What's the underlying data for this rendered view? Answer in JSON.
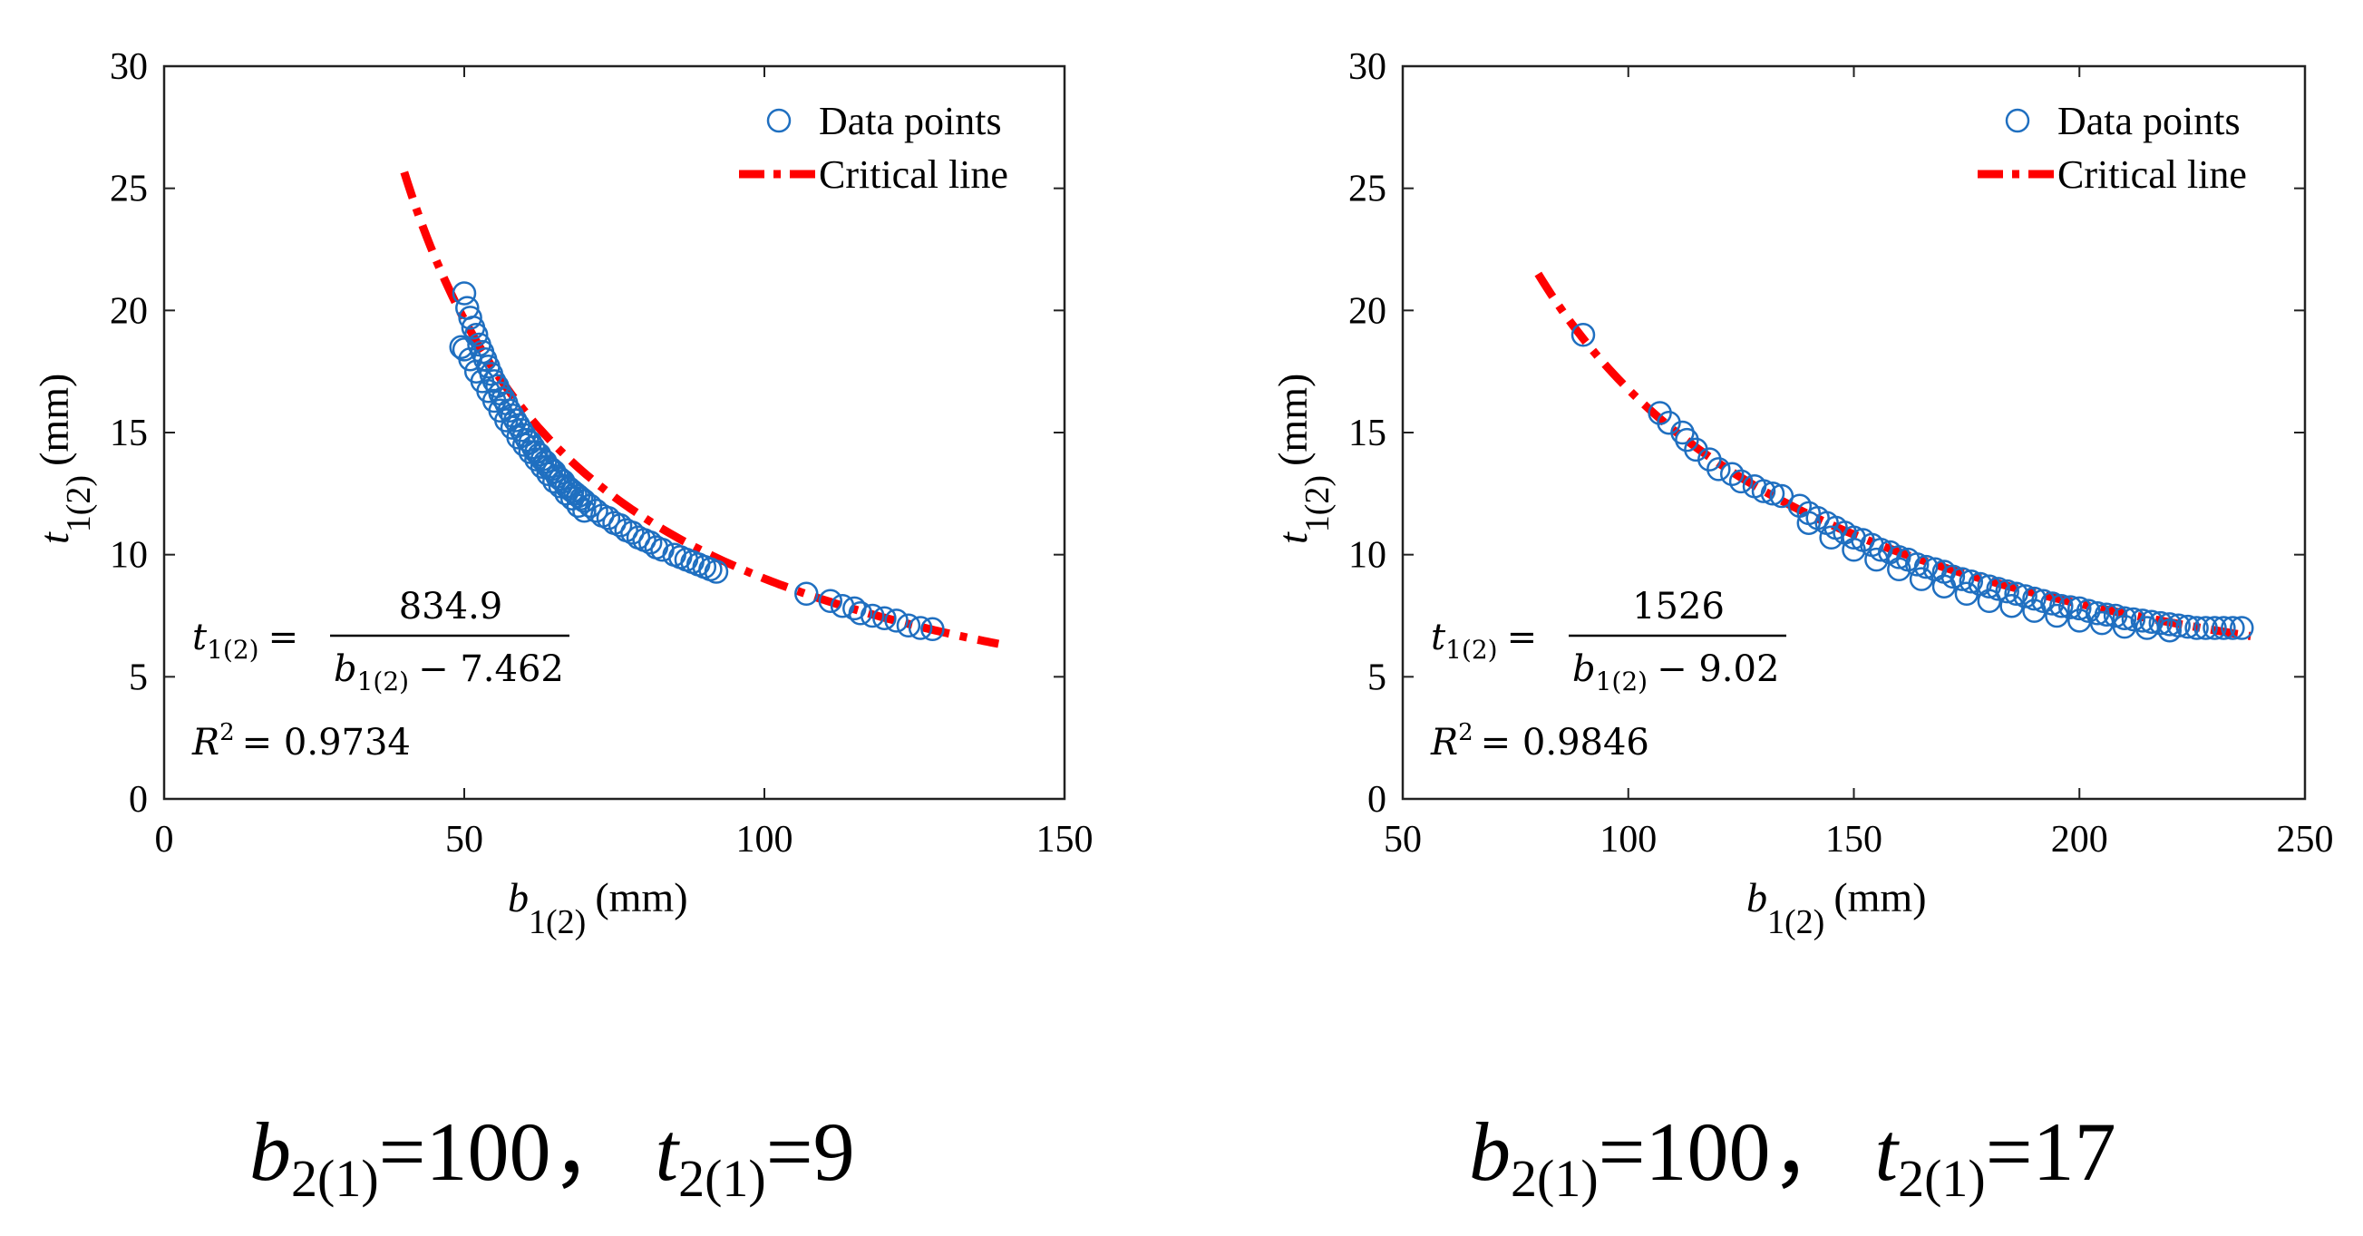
{
  "colors": {
    "points": "#1f6fc0",
    "critical": "#ff0000",
    "axis": "#222222"
  },
  "chart_data": [
    {
      "type": "scatter",
      "legend": {
        "placement": "top-right",
        "entries": [
          "Data points",
          "Critical line"
        ]
      },
      "xlabel": {
        "main": "b",
        "sub": "1(2)",
        "unit": "(mm)"
      },
      "ylabel": {
        "main": "t",
        "sub": "1(2)",
        "unit": "(mm)"
      },
      "xlim": [
        0,
        150
      ],
      "ylim": [
        0,
        30
      ],
      "xticks": [
        0,
        50,
        100,
        150
      ],
      "yticks": [
        0,
        5,
        10,
        15,
        20,
        25,
        30
      ],
      "xtick_labels": [
        "0",
        "50",
        "100",
        "150"
      ],
      "ytick_labels": [
        "0",
        "5",
        "10",
        "15",
        "20",
        "25",
        "30"
      ],
      "fit": {
        "a": 834.9,
        "c": 7.462,
        "x_range": [
          40,
          139
        ]
      },
      "equation": {
        "lhs": "t",
        "lhs_sub": "1(2)",
        "num": "834.9",
        "den_var": "b",
        "den_sub": "1(2)",
        "den_rest": "− 7.462"
      },
      "r2_text": {
        "label": "R",
        "sup": "2",
        "value": "= 0.9734"
      },
      "series": [
        {
          "name": "Data points",
          "x": [
            49.5,
            50,
            50.5,
            51,
            51.5,
            52,
            52.5,
            53,
            53.5,
            54,
            54.5,
            55,
            55.5,
            56,
            56.5,
            57,
            57.5,
            58,
            58.5,
            59,
            59.5,
            60,
            60.5,
            61,
            61.5,
            62,
            62.5,
            63,
            63.5,
            64,
            64.5,
            65,
            65.5,
            66,
            66.5,
            67,
            67.5,
            68,
            68.5,
            69,
            69.5,
            70,
            71,
            72,
            73,
            74,
            75,
            76,
            77,
            78,
            79,
            80,
            81,
            82,
            83,
            85,
            86,
            87,
            88,
            89,
            90,
            91,
            92,
            50,
            51,
            52,
            53,
            54,
            55,
            56,
            57,
            58,
            59,
            60,
            61,
            62,
            63,
            64,
            65,
            66,
            67,
            68,
            69,
            70,
            107,
            111,
            113,
            115,
            116,
            118,
            120,
            122,
            124,
            126,
            128
          ],
          "y": [
            18.5,
            20.7,
            20.1,
            19.7,
            19.3,
            19.0,
            18.6,
            18.3,
            18.0,
            17.7,
            17.4,
            17.1,
            16.9,
            16.6,
            16.4,
            16.2,
            15.9,
            15.7,
            15.5,
            15.3,
            15.1,
            14.9,
            14.7,
            14.6,
            14.4,
            14.2,
            14.1,
            13.9,
            13.8,
            13.6,
            13.5,
            13.4,
            13.2,
            13.1,
            13.0,
            12.8,
            12.7,
            12.6,
            12.5,
            12.4,
            12.3,
            12.2,
            12.0,
            11.8,
            11.6,
            11.5,
            11.3,
            11.2,
            11.0,
            10.9,
            10.7,
            10.6,
            10.5,
            10.3,
            10.2,
            10.0,
            9.9,
            9.8,
            9.7,
            9.6,
            9.5,
            9.4,
            9.3,
            18.4,
            18.0,
            17.5,
            17.1,
            16.7,
            16.3,
            15.9,
            15.5,
            15.2,
            14.8,
            14.5,
            14.2,
            13.9,
            13.6,
            13.3,
            13.0,
            12.8,
            12.5,
            12.3,
            12.0,
            11.8,
            8.4,
            8.1,
            7.9,
            7.8,
            7.6,
            7.5,
            7.4,
            7.3,
            7.1,
            7.0,
            6.95
          ]
        },
        {
          "name": "Critical line"
        }
      ]
    },
    {
      "type": "scatter",
      "legend": {
        "placement": "top-right",
        "entries": [
          "Data points",
          "Critical line"
        ]
      },
      "xlabel": {
        "main": "b",
        "sub": "1(2)",
        "unit": "(mm)"
      },
      "ylabel": {
        "main": "t",
        "sub": "1(2)",
        "unit": "(mm)"
      },
      "xlim": [
        50,
        250
      ],
      "ylim": [
        0,
        30
      ],
      "xticks": [
        50,
        100,
        150,
        200,
        250
      ],
      "yticks": [
        0,
        5,
        10,
        15,
        20,
        25,
        30
      ],
      "xtick_labels": [
        "50",
        "100",
        "150",
        "200",
        "250"
      ],
      "ytick_labels": [
        "0",
        "5",
        "10",
        "15",
        "20",
        "25",
        "30"
      ],
      "fit": {
        "a": 1526,
        "c": 9.02,
        "x_range": [
          80,
          238
        ]
      },
      "equation": {
        "lhs": "t",
        "lhs_sub": "1(2)",
        "num": "1526",
        "den_var": "b",
        "den_sub": "1(2)",
        "den_rest": "− 9.02"
      },
      "r2_text": {
        "label": "R",
        "sup": "2",
        "value": "= 0.9846"
      },
      "series": [
        {
          "name": "Data points",
          "x": [
            90,
            107,
            109,
            112,
            113,
            115,
            118,
            120,
            123,
            125,
            128,
            130,
            132,
            134,
            138,
            140,
            142,
            144,
            146,
            148,
            150,
            152,
            154,
            156,
            158,
            160,
            162,
            164,
            166,
            168,
            170,
            172,
            174,
            176,
            178,
            180,
            182,
            184,
            186,
            188,
            190,
            192,
            194,
            196,
            198,
            200,
            202,
            204,
            206,
            208,
            210,
            212,
            214,
            216,
            218,
            220,
            222,
            224,
            226,
            228,
            230,
            232,
            234,
            236,
            140,
            145,
            150,
            155,
            160,
            165,
            170,
            175,
            180,
            185,
            190,
            195,
            200,
            205,
            210,
            215,
            220
          ],
          "y": [
            19.0,
            15.8,
            15.4,
            15.0,
            14.7,
            14.3,
            13.9,
            13.5,
            13.3,
            13.0,
            12.8,
            12.6,
            12.5,
            12.4,
            12.0,
            11.7,
            11.5,
            11.3,
            11.1,
            10.9,
            10.7,
            10.6,
            10.4,
            10.2,
            10.1,
            9.9,
            9.8,
            9.6,
            9.5,
            9.4,
            9.3,
            9.1,
            9.0,
            8.9,
            8.8,
            8.7,
            8.6,
            8.5,
            8.4,
            8.3,
            8.2,
            8.1,
            8.0,
            7.9,
            7.85,
            7.8,
            7.7,
            7.6,
            7.55,
            7.5,
            7.4,
            7.35,
            7.3,
            7.25,
            7.2,
            7.15,
            7.1,
            7.05,
            7.0,
            7.0,
            7.0,
            7.0,
            7.0,
            7.0,
            11.3,
            10.7,
            10.2,
            9.8,
            9.4,
            9.0,
            8.7,
            8.4,
            8.1,
            7.9,
            7.7,
            7.5,
            7.3,
            7.2,
            7.05,
            7.0,
            6.9
          ]
        },
        {
          "name": "Critical line"
        }
      ]
    }
  ],
  "captions": [
    {
      "b": "b",
      "b_sub": "2(1)",
      "b_val": "=100，",
      "t": "t",
      "t_sub": "2(1)",
      "t_val": "=9"
    },
    {
      "b": "b",
      "b_sub": "2(1)",
      "b_val": "=100，",
      "t": "t",
      "t_sub": "2(1)",
      "t_val": "=17"
    }
  ]
}
